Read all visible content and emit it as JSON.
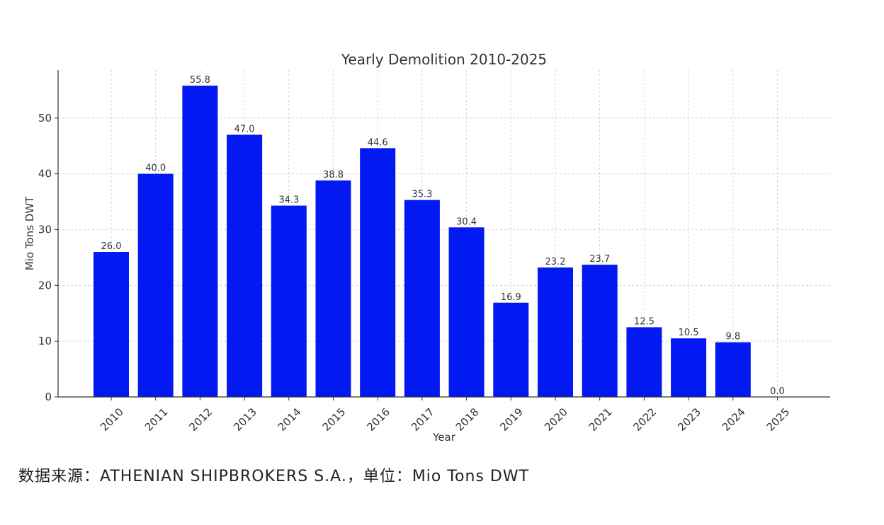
{
  "chart_data": {
    "type": "bar",
    "title": "Yearly Demolition 2010-2025",
    "xlabel": "Year",
    "ylabel": "Mio Tons DWT",
    "categories": [
      "2010",
      "2011",
      "2012",
      "2013",
      "2014",
      "2015",
      "2016",
      "2017",
      "2018",
      "2019",
      "2020",
      "2021",
      "2022",
      "2023",
      "2024",
      "2025"
    ],
    "values": [
      26.0,
      40.0,
      55.8,
      47.0,
      34.3,
      38.8,
      44.6,
      35.3,
      30.4,
      16.9,
      23.2,
      23.7,
      12.5,
      10.5,
      9.8,
      0.0
    ],
    "value_labels": [
      "26.0",
      "40.0",
      "55.8",
      "47.0",
      "34.3",
      "38.8",
      "44.6",
      "35.3",
      "30.4",
      "16.9",
      "23.2",
      "23.7",
      "12.5",
      "10.5",
      "9.8",
      "0.0"
    ],
    "ylim": [
      0,
      58.6
    ],
    "yticks": [
      0,
      10,
      20,
      30,
      40,
      50
    ],
    "grid": true,
    "bar_color": "#0219F2"
  },
  "footer": {
    "source_text": "数据来源：ATHENIAN SHIPBROKERS S.A.，单位：Mio Tons DWT"
  }
}
